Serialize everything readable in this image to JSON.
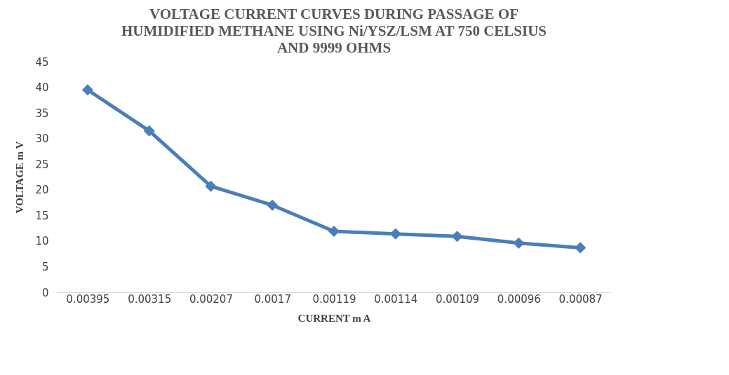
{
  "chart_data": {
    "type": "line",
    "title": [
      "VOLTAGE CURRENT CURVES  DURING PASSAGE OF",
      "HUMIDIFIED METHANE  USING Ni/YSZ/LSM AT 750 CELSIUS",
      "AND 9999 OHMS"
    ],
    "xlabel": "CURRENT m A",
    "ylabel": "VOLTAGE  m  V",
    "categories": [
      "0.00395",
      "0.00315",
      "0.00207",
      "0.0017",
      "0.00119",
      "0.00114",
      "0.00109",
      "0.00096",
      "0.00087"
    ],
    "series": [
      {
        "color": "#4a7ebb",
        "values": [
          39.5,
          31.5,
          20.7,
          17,
          11.9,
          11.4,
          10.9,
          9.6,
          8.7
        ]
      }
    ],
    "ylim": [
      0,
      45
    ],
    "yticks": [
      0,
      5,
      10,
      15,
      20,
      25,
      30,
      35,
      40,
      45
    ],
    "grid": false,
    "marker": "diamond",
    "line_style": "solid"
  }
}
